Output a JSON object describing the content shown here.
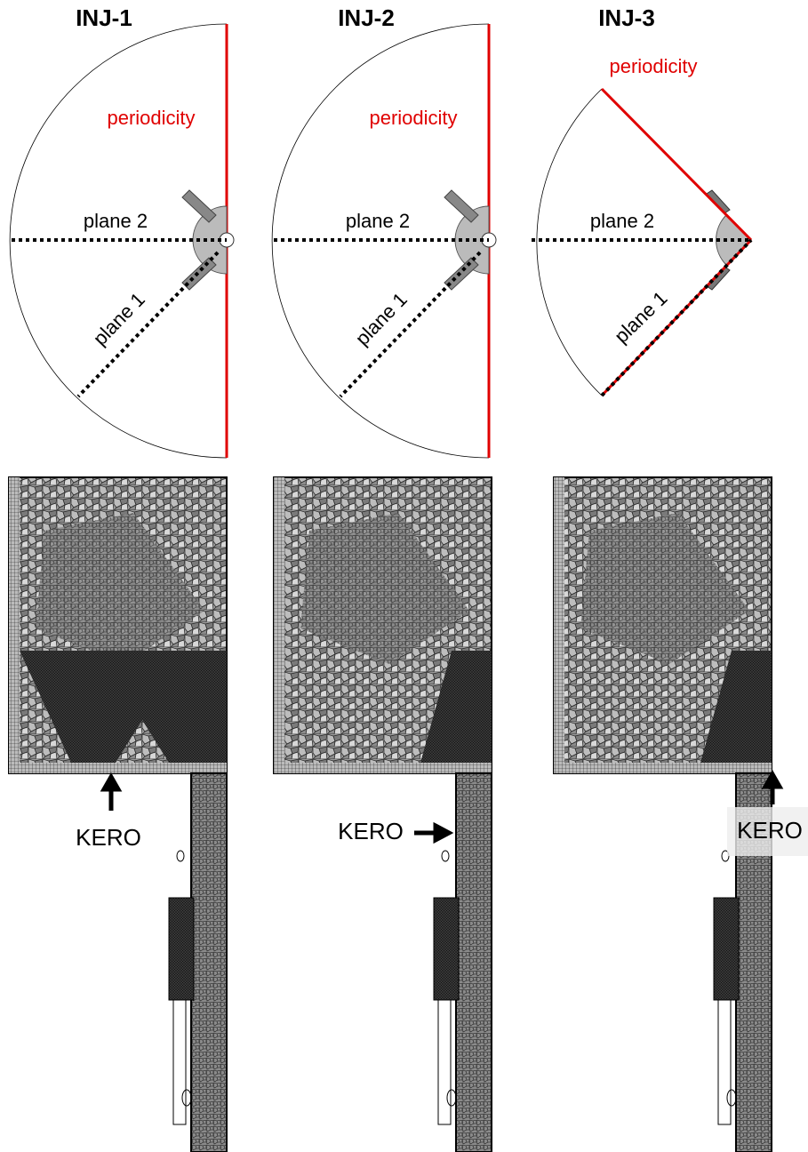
{
  "panels": [
    {
      "title": "INJ-1",
      "periodicity_label": "periodicity",
      "plane2_label": "plane 2",
      "plane1_label": "plane 1",
      "kero_label": "KERO"
    },
    {
      "title": "INJ-2",
      "periodicity_label": "periodicity",
      "plane2_label": "plane 2",
      "plane1_label": "plane 1",
      "kero_label": "KERO"
    },
    {
      "title": "INJ-3",
      "periodicity_label": "periodicity",
      "plane2_label": "plane 2",
      "plane1_label": "plane 1",
      "kero_label": "KERO"
    }
  ]
}
